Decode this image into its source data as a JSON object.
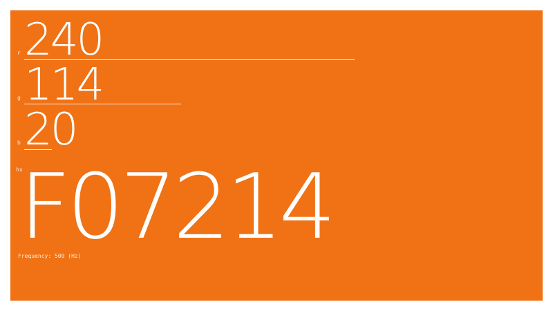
{
  "background_color": "#f07214",
  "channels": [
    {
      "letter": "r",
      "value": "240",
      "level": 240
    },
    {
      "letter": "g",
      "value": "114",
      "level": 114
    },
    {
      "letter": "b",
      "value": "20",
      "level": 20
    }
  ],
  "hex": {
    "label": "hx",
    "value": "F07214"
  },
  "frequency": "Frequency: 500 (Hz)"
}
